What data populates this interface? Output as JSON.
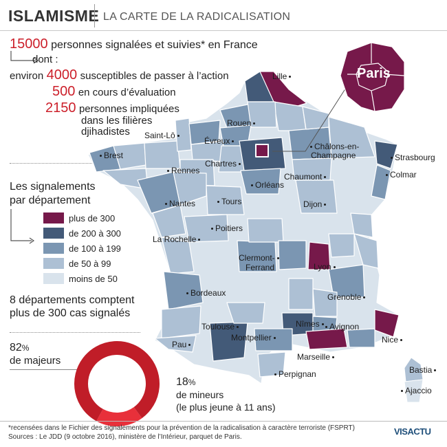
{
  "header": {
    "title": "ISLAMISME",
    "subtitle": "LA CARTE DE LA RADICALISATION"
  },
  "stats": {
    "total_number": "15000",
    "total_label": "personnes signalées et suivies* en France",
    "dont": "dont :",
    "environ": "environ",
    "action_number": "4000",
    "action_label": "susceptibles de passer à l’action",
    "eval_number": "500",
    "eval_label": "en cours d’évaluation",
    "djihad_number": "2150",
    "djihad_label_1": "personnes impliquées",
    "djihad_label_2": "dans les filières",
    "djihad_label_3": "djihadistes"
  },
  "legend": {
    "title_1": "Les signalements",
    "title_2": "par département",
    "items": [
      {
        "label": "plus de 300",
        "color": "#76194a"
      },
      {
        "label": "de 200 à 300",
        "color": "#435a78"
      },
      {
        "label": "de 100 à 199",
        "color": "#7b96b2"
      },
      {
        "label": "de 50 à 99",
        "color": "#adc0d4"
      },
      {
        "label": "moins de 50",
        "color": "#d9e3ec"
      }
    ]
  },
  "departments_note": {
    "line1": "8 départements comptent",
    "line2": "plus de 300 cas signalés"
  },
  "donut": {
    "majeurs_pct": 82,
    "majeurs_pct_label": "82",
    "majeurs_pct_sign": "%",
    "majeurs_label": "de majeurs",
    "mineurs_pct": 18,
    "mineurs_pct_label": "18",
    "mineurs_pct_sign": "%",
    "mineurs_label": "de mineurs",
    "mineurs_note": "(le plus jeune à 11 ans)",
    "color_majeurs": "#c01d28",
    "color_mineurs": "#e8303a"
  },
  "map": {
    "paris_label": "Paris",
    "cities": [
      {
        "id": "lille",
        "name": "Lille"
      },
      {
        "id": "rouen",
        "name": "Rouen"
      },
      {
        "id": "saint-lo",
        "name": "Saint-Lô"
      },
      {
        "id": "evreux",
        "name": "Évreux"
      },
      {
        "id": "brest",
        "name": "Brest"
      },
      {
        "id": "rennes",
        "name": "Rennes"
      },
      {
        "id": "chartres",
        "name": "Chartres"
      },
      {
        "id": "chalons",
        "name": "Châlons-en-"
      },
      {
        "id": "chalons2",
        "name": "Champagne"
      },
      {
        "id": "strasbourg",
        "name": "Strasbourg"
      },
      {
        "id": "colmar",
        "name": "Colmar"
      },
      {
        "id": "chaumont",
        "name": "Chaumont"
      },
      {
        "id": "orleans",
        "name": "Orléans"
      },
      {
        "id": "nantes",
        "name": "Nantes"
      },
      {
        "id": "tours",
        "name": "Tours"
      },
      {
        "id": "dijon",
        "name": "Dijon"
      },
      {
        "id": "poitiers",
        "name": "Poitiers"
      },
      {
        "id": "larochelle",
        "name": "La Rochelle"
      },
      {
        "id": "clermont",
        "name": "Clermont-"
      },
      {
        "id": "clermont2",
        "name": "Ferrand"
      },
      {
        "id": "lyon",
        "name": "Lyon"
      },
      {
        "id": "grenoble",
        "name": "Grenoble"
      },
      {
        "id": "bordeaux",
        "name": "Bordeaux"
      },
      {
        "id": "toulouse",
        "name": "Toulouse"
      },
      {
        "id": "nimes",
        "name": "Nîmes"
      },
      {
        "id": "avignon",
        "name": "Avignon"
      },
      {
        "id": "montpellier",
        "name": "Montpellier"
      },
      {
        "id": "pau",
        "name": "Pau"
      },
      {
        "id": "marseille",
        "name": "Marseille"
      },
      {
        "id": "nice",
        "name": "Nice"
      },
      {
        "id": "perpignan",
        "name": "Perpignan"
      },
      {
        "id": "bastia",
        "name": "Bastia"
      },
      {
        "id": "ajaccio",
        "name": "Ajaccio"
      }
    ]
  },
  "footer": {
    "line1": "*recensées dans le Fichier des signalements pour la prévention de la radicalisation à caractère terroriste (FSPRT)",
    "line2": "Sources : Le JDD (9 octobre 2016), ministère de l’Intérieur, parquet de Paris.",
    "logo_text": "VISACTU"
  }
}
